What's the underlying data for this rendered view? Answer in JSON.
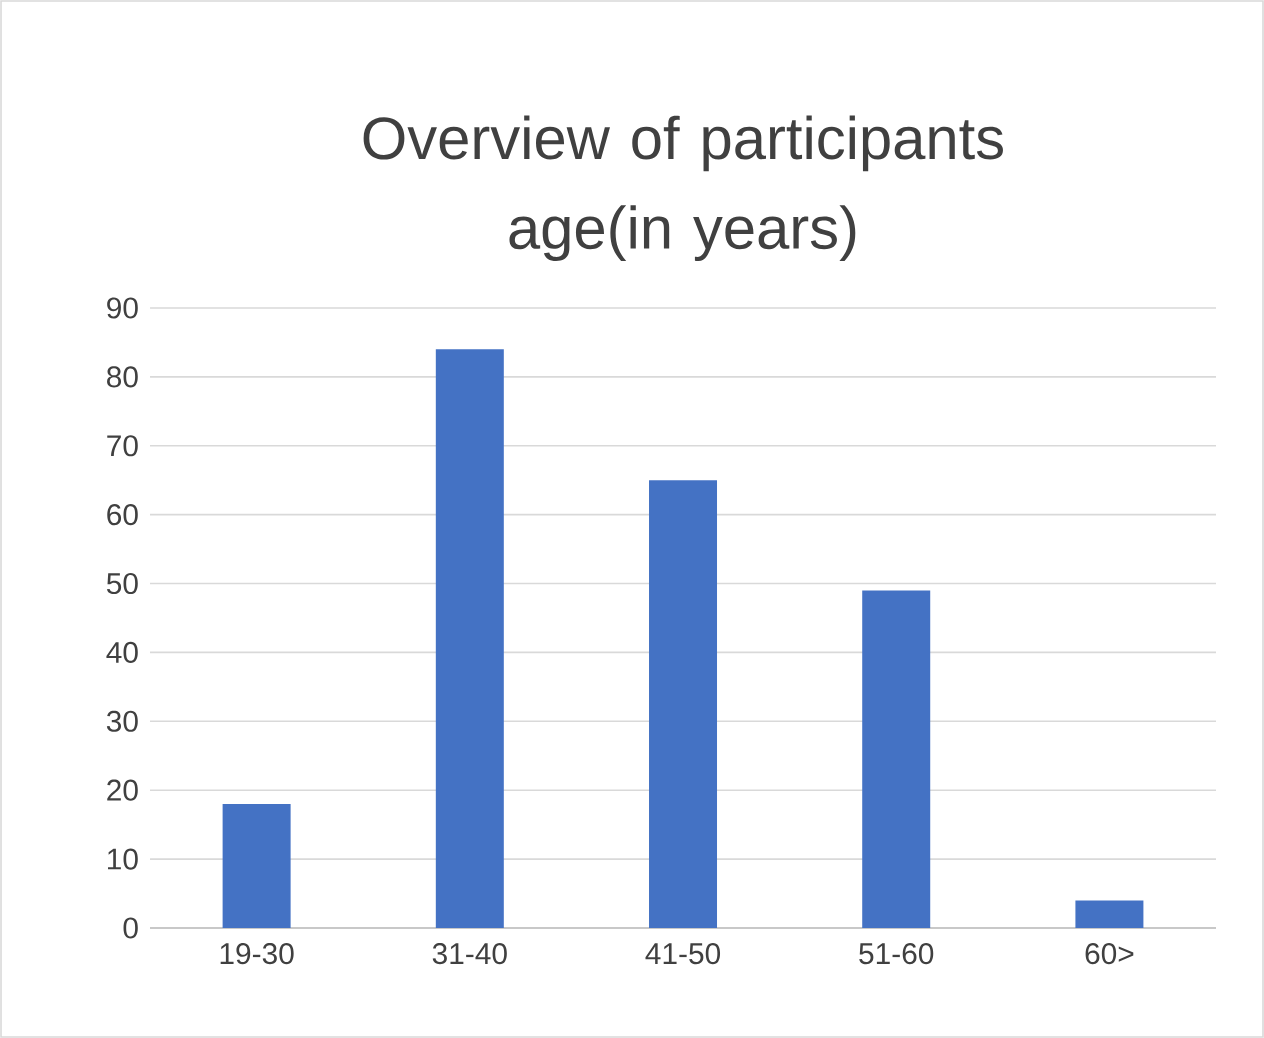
{
  "chart_data": {
    "type": "bar",
    "title": "Overview of participants age(in years)",
    "categories": [
      "19-30",
      "31-40",
      "41-50",
      "51-60",
      "60>"
    ],
    "values": [
      18,
      84,
      65,
      49,
      4
    ],
    "color": "#4472c4",
    "ylim": [
      0,
      90
    ],
    "yticks": [
      0,
      10,
      20,
      30,
      40,
      50,
      60,
      70,
      80,
      90
    ],
    "grid": "y"
  }
}
